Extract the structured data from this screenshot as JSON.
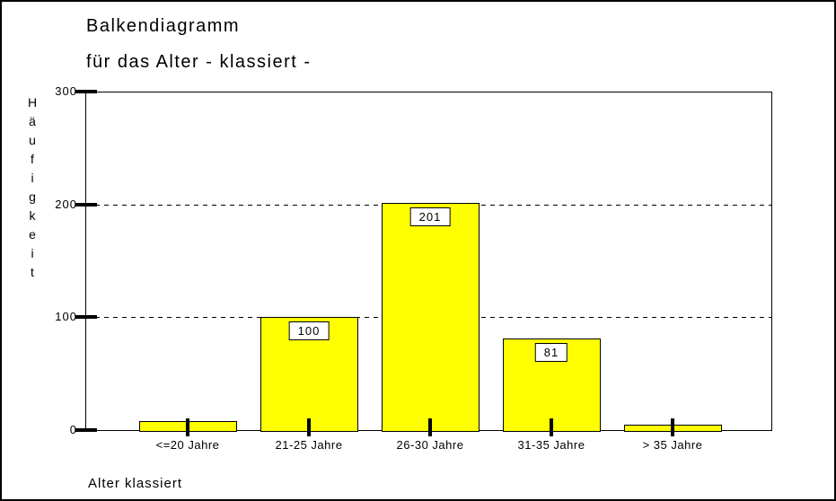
{
  "window": {
    "background": "#FFFFFF",
    "border_color": "#000000"
  },
  "chart_data": {
    "type": "bar",
    "title": "Balkendiagramm",
    "subtitle": "für das Alter - klassiert -",
    "xlabel": "Alter klassiert",
    "ylabel": "Häufigkeit",
    "categories": [
      "<=20 Jahre",
      "21-25 Jahre",
      "26-30 Jahre",
      "31-35 Jahre",
      "> 35 Jahre"
    ],
    "values": [
      8,
      100,
      201,
      81,
      5
    ],
    "value_labels": [
      "",
      "100",
      "201",
      "81",
      ""
    ],
    "ylim": [
      0,
      300
    ],
    "yticks": [
      0,
      100,
      200,
      300
    ],
    "gridlines": [
      100,
      200
    ],
    "grid_style": "dashed",
    "legend": "none",
    "bar_color": "#FFFF00",
    "bar_border_color": "#000000",
    "axis_color": "#000000",
    "value_label_box_color": "#FFFFFF",
    "text_color": "#000000"
  }
}
